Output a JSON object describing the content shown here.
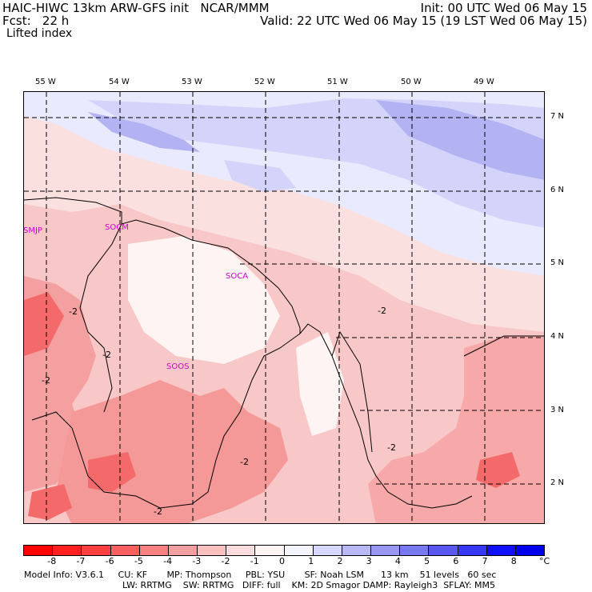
{
  "header": {
    "model_line": "HAIC-HIWC 13km ARW-GFS init   NCAR/MMM",
    "fcst_line": "Fcst:   22 h",
    "init_line": "Init: 00 UTC Wed 06 May 15",
    "valid_line": "Valid: 22 UTC Wed 06 May 15 (19 LST Wed 06 May 15)",
    "field_name": "Lifted index"
  },
  "map": {
    "longitude_labels": [
      "55 W",
      "54 W",
      "53 W",
      "52 W",
      "51 W",
      "50 W",
      "49 W"
    ],
    "latitude_labels": [
      "7 N",
      "6 N",
      "5 N",
      "4 N",
      "3 N",
      "2 N"
    ],
    "stations": [
      "SMJP",
      "SOCM",
      "SOCA",
      "SOOS"
    ],
    "contour_label": "-2",
    "colors": {
      "deep_red": "#ff2a2a",
      "red": "#f46a6a",
      "med_red": "#f7a0a0",
      "light_red": "#f8c0c0",
      "pale_red": "#fbe0e0",
      "near_white": "#fff4f4",
      "pale_blue": "#eaeaff",
      "light_blue": "#d4d4fa",
      "blue": "#b3b3f3"
    }
  },
  "colorbar": {
    "labels": [
      "-8",
      "-7",
      "-6",
      "-5",
      "-4",
      "-3",
      "-2",
      "-1",
      "0",
      "1",
      "2",
      "3",
      "4",
      "5",
      "6",
      "7",
      "8"
    ],
    "unit": "°C",
    "colors": [
      "#ff0000",
      "#ff2020",
      "#ff4040",
      "#f86060",
      "#f48080",
      "#f4a0a0",
      "#f8c0c0",
      "#fadcdc",
      "#fff4f4",
      "#f4f4ff",
      "#d8d8ff",
      "#b8b8f8",
      "#9898f4",
      "#7878f0",
      "#5858f0",
      "#3838f4",
      "#1010ff",
      "#0000ee"
    ]
  },
  "footer": {
    "line1": "Model Info: V3.6.1     CU: KF       MP: Thompson     PBL: YSU       SF: Noah LSM      13 km    51 levels   60 sec",
    "line2": "LW: RRTMG    SW: RRTMG   DIFF: full    KM: 2D Smagor DAMP: Rayleigh3  SFLAY: MM5"
  }
}
